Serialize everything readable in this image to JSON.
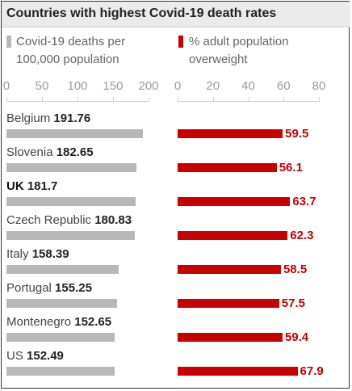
{
  "title": "Countries with highest Covid-19 death rates",
  "colors": {
    "deaths_bar": "#b8b8b8",
    "overweight_bar": "#c70000",
    "overweight_label": "#c70000"
  },
  "chart_data": {
    "type": "bar",
    "orientation": "horizontal",
    "title": "Countries with highest Covid-19 death rates",
    "categories": [
      "Belgium",
      "Slovenia",
      "UK",
      "Czech Republic",
      "Italy",
      "Portugal",
      "Montenegro",
      "US"
    ],
    "panels": [
      {
        "legend": "Covid-19 deaths per 100,000 population",
        "legend_line1": "Covid-19 deaths per",
        "legend_line2": "100,000 population",
        "values": [
          191.76,
          182.65,
          181.7,
          180.83,
          158.39,
          155.25,
          152.65,
          152.49
        ],
        "value_labels": [
          "191.76",
          "182.65",
          "181.7",
          "180.83",
          "158.39",
          "155.25",
          "152.65",
          "152.49"
        ],
        "xlim": [
          0,
          200
        ],
        "ticks": [
          0,
          50,
          100,
          150,
          200
        ],
        "tick_labels": [
          "0",
          "50",
          "100",
          "150",
          "200"
        ]
      },
      {
        "legend": "% adult population overweight",
        "legend_line1": "% adult population",
        "legend_line2": "overweight",
        "values": [
          59.5,
          56.1,
          63.7,
          62.3,
          58.5,
          57.5,
          59.4,
          67.9
        ],
        "value_labels": [
          "59.5",
          "56.1",
          "63.7",
          "62.3",
          "58.5",
          "57.5",
          "59.4",
          "67.9"
        ],
        "xlim": [
          0,
          80
        ],
        "ticks": [
          0,
          20,
          40,
          60,
          80
        ],
        "tick_labels": [
          "0",
          "20",
          "40",
          "60",
          "80"
        ]
      }
    ]
  }
}
